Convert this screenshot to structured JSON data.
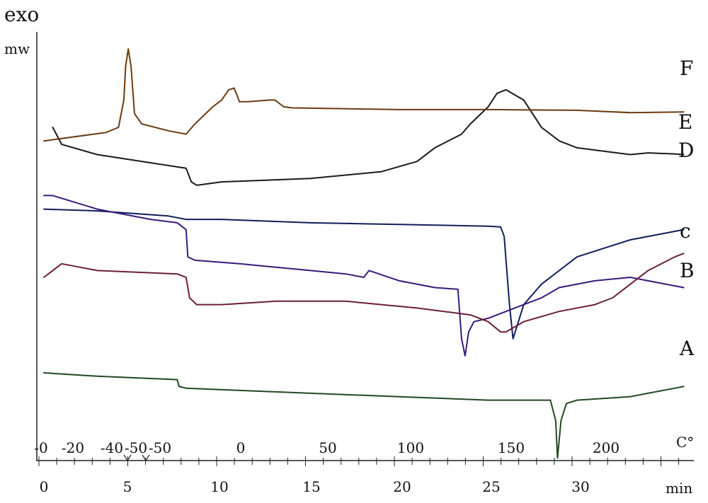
{
  "chart_data": {
    "type": "line",
    "title": "",
    "ylabel_top": "exo",
    "ylabel": "mw",
    "x_time": {
      "label": "min",
      "ticks": [
        0,
        5,
        10,
        15,
        20,
        25,
        30
      ],
      "range": [
        0,
        36
      ]
    },
    "x_temperature": {
      "label": "C°",
      "tick_labels": [
        "-0",
        "-20",
        "-40",
        "-50",
        "-50",
        "0",
        "50",
        "100",
        "150",
        "200"
      ]
    },
    "grid": false,
    "series": [
      {
        "name": "F",
        "color": "#1a1a1a",
        "points": [
          [
            0.5,
            28
          ],
          [
            1,
            33
          ],
          [
            3,
            36
          ],
          [
            8,
            40
          ],
          [
            8.3,
            44
          ],
          [
            8.6,
            45
          ],
          [
            10,
            44
          ],
          [
            15,
            43
          ],
          [
            19,
            41
          ],
          [
            21,
            38
          ],
          [
            22,
            34
          ],
          [
            23.5,
            30
          ],
          [
            24,
            27
          ],
          [
            25,
            22
          ],
          [
            25.5,
            18
          ],
          [
            26,
            17
          ],
          [
            27,
            20
          ],
          [
            28,
            28
          ],
          [
            29,
            32
          ],
          [
            30,
            34
          ],
          [
            33,
            36
          ],
          [
            34,
            35.5
          ],
          [
            35.5,
            35.8
          ],
          [
            36,
            36
          ]
        ]
      },
      {
        "name": "E",
        "color": "#6b3b10",
        "points": [
          [
            0,
            32
          ],
          [
            3.5,
            29.5
          ],
          [
            4.2,
            28
          ],
          [
            4.5,
            20
          ],
          [
            4.6,
            10
          ],
          [
            4.75,
            5
          ],
          [
            4.9,
            10
          ],
          [
            5.1,
            24
          ],
          [
            5.5,
            27
          ],
          [
            7,
            29
          ],
          [
            8,
            30
          ],
          [
            8.5,
            27
          ],
          [
            9.5,
            22
          ],
          [
            10,
            20
          ],
          [
            10.4,
            17
          ],
          [
            10.7,
            16.5
          ],
          [
            10.9,
            19
          ],
          [
            11,
            20.5
          ],
          [
            11.5,
            20.5
          ],
          [
            12.7,
            20
          ],
          [
            13,
            20
          ],
          [
            13.5,
            22
          ],
          [
            14,
            22.3
          ],
          [
            20,
            22.8
          ],
          [
            25,
            22.8
          ],
          [
            30,
            23
          ],
          [
            33,
            23.7
          ],
          [
            36,
            23.5
          ]
        ]
      },
      {
        "name": "D",
        "color": "#0f1f5a",
        "points": [
          [
            0,
            52
          ],
          [
            3,
            52.5
          ],
          [
            7,
            54
          ],
          [
            8,
            55
          ],
          [
            10,
            55
          ],
          [
            15,
            56
          ],
          [
            20,
            56.5
          ],
          [
            25,
            57
          ],
          [
            25.7,
            57.2
          ],
          [
            25.9,
            60
          ],
          [
            26.2,
            80
          ],
          [
            26.4,
            90
          ],
          [
            26.7,
            85
          ],
          [
            27,
            80
          ],
          [
            28,
            74
          ],
          [
            30,
            66
          ],
          [
            33,
            61
          ],
          [
            36,
            58
          ]
        ]
      },
      {
        "name": "c",
        "color": "#3a1a7a",
        "points": [
          [
            0,
            48
          ],
          [
            0.5,
            48
          ],
          [
            3,
            52
          ],
          [
            6,
            55
          ],
          [
            7.5,
            56
          ],
          [
            8,
            58
          ],
          [
            8.1,
            66
          ],
          [
            8.5,
            67
          ],
          [
            11,
            68
          ],
          [
            15,
            70
          ],
          [
            17,
            71
          ],
          [
            18,
            72
          ],
          [
            18.3,
            70
          ],
          [
            20,
            73
          ],
          [
            22,
            75
          ],
          [
            23.3,
            75.5
          ],
          [
            23.5,
            90
          ],
          [
            23.7,
            95
          ],
          [
            23.9,
            88
          ],
          [
            24.2,
            85
          ],
          [
            25,
            84
          ],
          [
            27,
            80
          ],
          [
            28,
            78
          ],
          [
            29,
            75
          ],
          [
            31,
            73
          ],
          [
            33,
            72
          ],
          [
            34,
            73
          ],
          [
            36,
            75
          ]
        ]
      },
      {
        "name": "B",
        "color": "#6b1f3a",
        "points": [
          [
            0,
            72
          ],
          [
            0.5,
            70
          ],
          [
            1,
            68
          ],
          [
            3,
            70
          ],
          [
            7.5,
            71
          ],
          [
            8,
            72
          ],
          [
            8.2,
            78
          ],
          [
            8.6,
            80
          ],
          [
            10,
            80
          ],
          [
            13,
            79
          ],
          [
            17,
            79
          ],
          [
            19,
            80
          ],
          [
            21,
            81
          ],
          [
            22.5,
            82
          ],
          [
            24,
            83
          ],
          [
            25,
            85
          ],
          [
            25.7,
            88
          ],
          [
            26,
            88
          ],
          [
            27,
            85
          ],
          [
            29,
            82
          ],
          [
            31,
            80
          ],
          [
            32,
            78
          ],
          [
            33,
            74
          ],
          [
            34,
            70
          ],
          [
            35.5,
            66
          ],
          [
            36,
            65
          ]
        ]
      },
      {
        "name": "A",
        "color": "#1f4a1f",
        "points": [
          [
            0,
            100
          ],
          [
            3,
            101
          ],
          [
            7.5,
            102
          ],
          [
            7.6,
            104
          ],
          [
            8,
            104.5
          ],
          [
            15,
            106
          ],
          [
            20,
            107
          ],
          [
            25,
            108
          ],
          [
            28.5,
            108
          ],
          [
            28.8,
            114
          ],
          [
            28.9,
            125
          ],
          [
            29.1,
            114
          ],
          [
            29.4,
            109
          ],
          [
            30,
            108
          ],
          [
            33,
            107
          ],
          [
            34,
            106
          ],
          [
            36,
            104
          ]
        ]
      }
    ]
  }
}
